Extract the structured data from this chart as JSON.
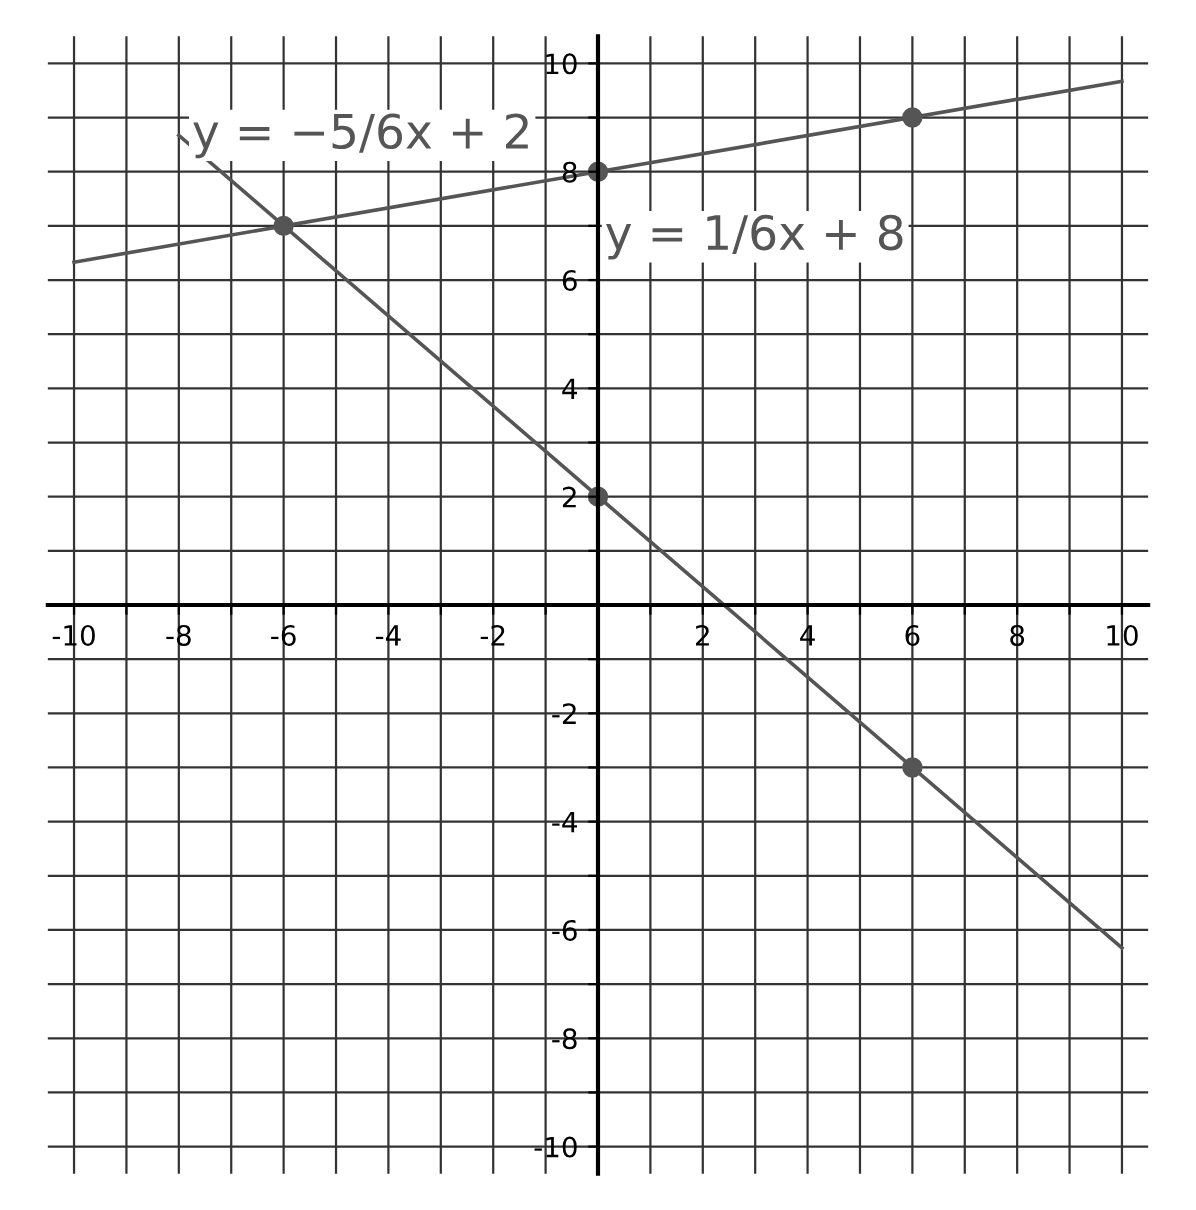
{
  "chart_data": {
    "type": "line",
    "xlim": [
      -10.5,
      10.5
    ],
    "ylim": [
      -10.5,
      10.5
    ],
    "xticks": [
      -10,
      {
        "value": -9,
        "label": null
      },
      -8,
      {
        "value": -7,
        "label": null
      },
      -6,
      {
        "value": -5,
        "label": null
      },
      -4,
      {
        "value": -3,
        "label": null
      },
      -2,
      {
        "value": -1,
        "label": null
      },
      {
        "value": 0,
        "label": null
      },
      {
        "value": 1,
        "label": null
      },
      2,
      {
        "value": 3,
        "label": null
      },
      4,
      {
        "value": 5,
        "label": null
      },
      6,
      {
        "value": 7,
        "label": null
      },
      8,
      {
        "value": 9,
        "label": null
      },
      10
    ],
    "yticks": [
      -10,
      {
        "value": -9,
        "label": null
      },
      -8,
      {
        "value": -7,
        "label": null
      },
      -6,
      {
        "value": -5,
        "label": null
      },
      -4,
      {
        "value": -3,
        "label": null
      },
      -2,
      {
        "value": -1,
        "label": null
      },
      {
        "value": 0,
        "label": null
      },
      {
        "value": 1,
        "label": null
      },
      2,
      {
        "value": 3,
        "label": null
      },
      4,
      {
        "value": 5,
        "label": null
      },
      6,
      {
        "value": 7,
        "label": null
      },
      8,
      {
        "value": 9,
        "label": null
      },
      10
    ],
    "grid": true,
    "legend": false,
    "series": [
      {
        "name": "y = −5/6x + 2",
        "color": "#555555",
        "x": [
          -8,
          10
        ],
        "values": [
          8.67,
          -6.33
        ]
      },
      {
        "name": "y = 1/6x + 8",
        "color": "#555555",
        "x": [
          -10,
          10
        ],
        "values": [
          6.33,
          9.67
        ]
      },
      {
        "type": "scatter",
        "color": "#555555",
        "marker": "circle",
        "x": [
          -6,
          0,
          6,
          0,
          6
        ],
        "values": [
          7,
          8,
          9,
          2,
          -3
        ]
      }
    ]
  }
}
